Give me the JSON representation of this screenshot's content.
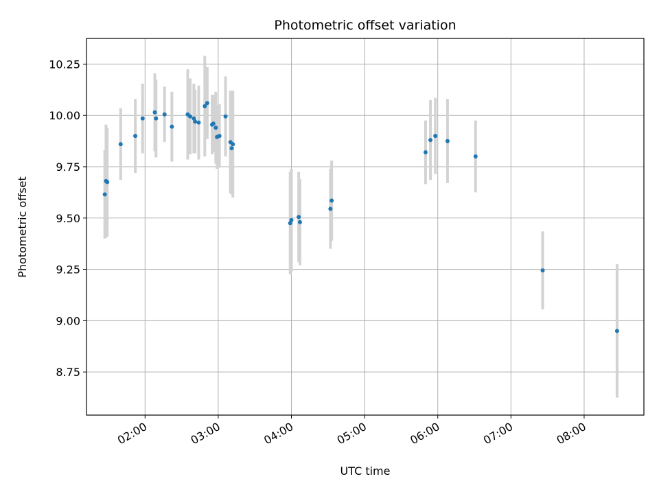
{
  "chart_data": {
    "type": "scatter",
    "title": "Photometric offset variation",
    "xlabel": "UTC time",
    "ylabel": "Photometric offset",
    "x_axis": "time",
    "xlim": [
      "01:12",
      "08:49"
    ],
    "ylim": [
      8.54,
      10.375
    ],
    "grid": true,
    "x_ticks": [
      "02:00",
      "03:00",
      "04:00",
      "05:00",
      "06:00",
      "07:00",
      "08:00"
    ],
    "y_ticks": [
      "8.75",
      "9.00",
      "9.25",
      "9.50",
      "9.75",
      "10.00",
      "10.25"
    ],
    "colors": {
      "points": "#1f77b4",
      "errorbars": "#d3d3d3",
      "grid": "#b0b0b0"
    },
    "points": [
      {
        "x": "01:27",
        "y": 9.615,
        "yerr": 0.215
      },
      {
        "x": "01:28",
        "y": 9.68,
        "yerr": 0.275
      },
      {
        "x": "01:29",
        "y": 9.675,
        "yerr": 0.265
      },
      {
        "x": "01:40",
        "y": 9.86,
        "yerr": 0.175
      },
      {
        "x": "01:52",
        "y": 9.9,
        "yerr": 0.18
      },
      {
        "x": "01:58",
        "y": 9.985,
        "yerr": 0.17
      },
      {
        "x": "02:08",
        "y": 10.015,
        "yerr": 0.19
      },
      {
        "x": "02:09",
        "y": 9.985,
        "yerr": 0.19
      },
      {
        "x": "02:16",
        "y": 10.005,
        "yerr": 0.135
      },
      {
        "x": "02:22",
        "y": 9.945,
        "yerr": 0.17
      },
      {
        "x": "02:35",
        "y": 10.005,
        "yerr": 0.22
      },
      {
        "x": "02:37",
        "y": 9.995,
        "yerr": 0.185
      },
      {
        "x": "02:40",
        "y": 9.985,
        "yerr": 0.17
      },
      {
        "x": "02:41",
        "y": 9.97,
        "yerr": 0.155
      },
      {
        "x": "02:44",
        "y": 9.965,
        "yerr": 0.18
      },
      {
        "x": "02:49",
        "y": 10.045,
        "yerr": 0.245
      },
      {
        "x": "02:51",
        "y": 10.06,
        "yerr": 0.175
      },
      {
        "x": "02:55",
        "y": 9.955,
        "yerr": 0.145
      },
      {
        "x": "02:56",
        "y": 9.96,
        "yerr": 0.14
      },
      {
        "x": "02:58",
        "y": 9.94,
        "yerr": 0.175
      },
      {
        "x": "02:59",
        "y": 9.895,
        "yerr": 0.155
      },
      {
        "x": "03:01",
        "y": 9.9,
        "yerr": 0.155
      },
      {
        "x": "03:06",
        "y": 9.995,
        "yerr": 0.195
      },
      {
        "x": "03:10",
        "y": 9.87,
        "yerr": 0.25
      },
      {
        "x": "03:11",
        "y": 9.84,
        "yerr": 0.225
      },
      {
        "x": "03:12",
        "y": 9.86,
        "yerr": 0.26
      },
      {
        "x": "03:59",
        "y": 9.475,
        "yerr": 0.25
      },
      {
        "x": "04:00",
        "y": 9.49,
        "yerr": 0.25
      },
      {
        "x": "04:06",
        "y": 9.505,
        "yerr": 0.22
      },
      {
        "x": "04:07",
        "y": 9.48,
        "yerr": 0.21
      },
      {
        "x": "04:32",
        "y": 9.545,
        "yerr": 0.195
      },
      {
        "x": "04:33",
        "y": 9.585,
        "yerr": 0.195
      },
      {
        "x": "05:50",
        "y": 9.82,
        "yerr": 0.155
      },
      {
        "x": "05:54",
        "y": 9.88,
        "yerr": 0.195
      },
      {
        "x": "05:58",
        "y": 9.9,
        "yerr": 0.185
      },
      {
        "x": "06:08",
        "y": 9.875,
        "yerr": 0.205
      },
      {
        "x": "06:31",
        "y": 9.8,
        "yerr": 0.175
      },
      {
        "x": "07:26",
        "y": 9.245,
        "yerr": 0.19
      },
      {
        "x": "08:27",
        "y": 8.95,
        "yerr": 0.325
      }
    ]
  }
}
